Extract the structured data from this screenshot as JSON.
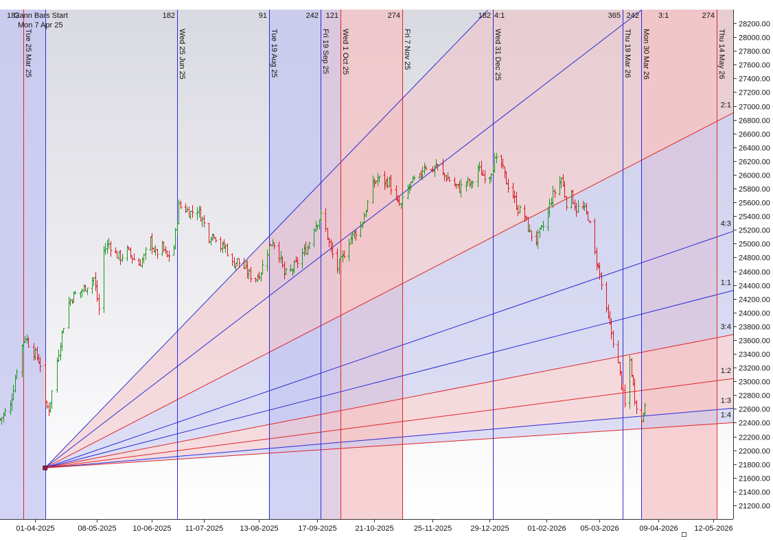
{
  "header": {
    "start_label": "Gann Bars Start",
    "start_date": "Mon 7 Apr 25"
  },
  "chart_data": {
    "type": "ohlc",
    "title": "",
    "xlabel": "",
    "ylabel": "",
    "ylim": [
      21000,
      28400
    ],
    "grid": false,
    "y_tick_labels": [
      "21200.00",
      "21400.00",
      "21600.00",
      "21800.00",
      "22000.00",
      "22200.00",
      "22400.00",
      "22600.00",
      "22800.00",
      "23000.00",
      "23200.00",
      "23400.00",
      "23600.00",
      "23800.00",
      "24000.00",
      "24200.00",
      "24400.00",
      "24600.00",
      "24800.00",
      "25000.00",
      "25200.00",
      "25400.00",
      "25600.00",
      "25800.00",
      "26000.00",
      "26200.00",
      "26400.00",
      "26600.00",
      "26800.00",
      "27000.00",
      "27200.00",
      "27400.00",
      "27600.00",
      "27800.00",
      "28000.00",
      "28200.00"
    ],
    "x_tick_labels": [
      "01-04-2025",
      "08-05-2025",
      "10-06-2025",
      "11-07-2025",
      "13-08-2025",
      "17-09-2025",
      "21-10-2025",
      "25-11-2025",
      "29-12-2025",
      "01-02-2026",
      "05-03-2026",
      "09-04-2026",
      "12-05-2026"
    ],
    "x_tick_dates": [
      "2025-04-01",
      "2025-05-08",
      "2025-06-10",
      "2025-07-11",
      "2025-08-13",
      "2025-09-17",
      "2025-10-21",
      "2025-11-25",
      "2025-12-29",
      "2026-02-01",
      "2026-03-05",
      "2026-04-09",
      "2026-05-12"
    ],
    "x_range": [
      "2025-03-11",
      "2026-05-24"
    ],
    "gann_origin": {
      "date": "2025-04-07",
      "price": 21743
    },
    "gann_fan": [
      {
        "label": "",
        "end_date": "2025-12-28",
        "end_price": 28390,
        "color": "#2b2bd6"
      },
      {
        "label": "",
        "end_date": "2026-03-30",
        "end_price": 28390,
        "color": "#2b2bd6"
      },
      {
        "label": "2:1",
        "end_date": "2026-05-24",
        "end_price": 26900,
        "color": "#e02424"
      },
      {
        "label": "4:3",
        "end_date": "2026-05-24",
        "end_price": 25180,
        "color": "#2b2bd6"
      },
      {
        "label": "1:1",
        "end_date": "2026-05-24",
        "end_price": 24320,
        "color": "#2b2bd6"
      },
      {
        "label": "3:4",
        "end_date": "2026-05-24",
        "end_price": 23680,
        "color": "#e02424"
      },
      {
        "label": "1:2",
        "end_date": "2026-05-24",
        "end_price": 23040,
        "color": "#e02424"
      },
      {
        "label": "1:3",
        "end_date": "2026-05-24",
        "end_price": 22610,
        "color": "#2b2bd6"
      },
      {
        "label": "1:4",
        "end_date": "2026-05-24",
        "end_price": 22400,
        "color": "#e02424"
      }
    ],
    "shade_colors": {
      "blue": "#c4c6f0",
      "red": "#f3c3c6"
    },
    "time_lines": [
      {
        "date": "2025-03-25",
        "label": "Tue 25 Mar 25",
        "count": "",
        "color": "#e02424"
      },
      {
        "date": "2025-04-07",
        "label": "",
        "count": "",
        "color": "#2b2bd6"
      },
      {
        "date": "2025-06-25",
        "label": "Wed 25 Jun 25",
        "count": "182",
        "color": "#2b2bd6"
      },
      {
        "date": "2025-08-19",
        "label": "Tue 19 Aug 25",
        "count": "91",
        "color": "#2b2bd6"
      },
      {
        "date": "2025-09-19",
        "label": "Fri 19 Sep 25",
        "count": "242",
        "color": "#2b2bd6"
      },
      {
        "date": "2025-10-01",
        "label": "Wed 1 Oct 25",
        "count": "121",
        "color": "#e02424"
      },
      {
        "date": "2025-11-07",
        "label": "Fri 7 Nov 25",
        "count": "274",
        "color": "#e02424"
      },
      {
        "date": "2025-12-31",
        "label": "Wed 31 Dec 25",
        "count": "182",
        "color": "#2b2bd6"
      },
      {
        "date": "2026-03-19",
        "label": "Thu 19 Mar 26",
        "count": "365",
        "color": "#2b2bd6"
      },
      {
        "date": "2026-03-30",
        "label": "Mon 30 Mar 26",
        "count": "242",
        "color": "#2b2bd6"
      },
      {
        "date": "2026-05-14",
        "label": "Thu 14 May 26",
        "count": "274",
        "color": "#e02424"
      }
    ],
    "top_counts": [
      {
        "date": "2025-03-15",
        "text": "182"
      },
      {
        "date": "2026-01-01",
        "text": "4:1"
      },
      {
        "date": "2026-04-09",
        "text": "3:1"
      }
    ],
    "time_bands": [
      {
        "from": "2025-03-11",
        "to": "2025-04-07",
        "color": "blue"
      },
      {
        "from": "2025-08-19",
        "to": "2025-09-19",
        "color": "blue"
      },
      {
        "from": "2025-09-19",
        "to": "2025-10-01",
        "color": "mix"
      },
      {
        "from": "2025-10-01",
        "to": "2025-11-07",
        "color": "red"
      },
      {
        "from": "2026-03-30",
        "to": "2026-05-14",
        "color": "red"
      }
    ],
    "series_points": [
      [
        "2025-03-11",
        22450
      ],
      [
        "2025-03-14",
        22550
      ],
      [
        "2025-03-17",
        22650
      ],
      [
        "2025-03-20",
        23050
      ],
      [
        "2025-03-23",
        23450
      ],
      [
        "2025-03-26",
        23650
      ],
      [
        "2025-03-29",
        23500
      ],
      [
        "2025-04-02",
        23350
      ],
      [
        "2025-04-04",
        23250
      ],
      [
        "2025-04-07",
        22650
      ],
      [
        "2025-04-09",
        22600
      ],
      [
        "2025-04-11",
        22850
      ],
      [
        "2025-04-14",
        23300
      ],
      [
        "2025-04-17",
        23700
      ],
      [
        "2025-04-21",
        24150
      ],
      [
        "2025-04-24",
        24250
      ],
      [
        "2025-04-28",
        24300
      ],
      [
        "2025-05-02",
        24400
      ],
      [
        "2025-05-06",
        24500
      ],
      [
        "2025-05-09",
        24050
      ],
      [
        "2025-05-12",
        24900
      ],
      [
        "2025-05-15",
        25000
      ],
      [
        "2025-05-19",
        24850
      ],
      [
        "2025-05-22",
        24800
      ],
      [
        "2025-05-26",
        24900
      ],
      [
        "2025-05-29",
        24800
      ],
      [
        "2025-06-02",
        24700
      ],
      [
        "2025-06-05",
        24800
      ],
      [
        "2025-06-09",
        25050
      ],
      [
        "2025-06-12",
        24850
      ],
      [
        "2025-06-16",
        24950
      ],
      [
        "2025-06-19",
        24800
      ],
      [
        "2025-06-23",
        24950
      ],
      [
        "2025-06-26",
        25550
      ],
      [
        "2025-06-30",
        25500
      ],
      [
        "2025-07-03",
        25450
      ],
      [
        "2025-07-07",
        25500
      ],
      [
        "2025-07-10",
        25350
      ],
      [
        "2025-07-14",
        25100
      ],
      [
        "2025-07-17",
        25150
      ],
      [
        "2025-07-21",
        24950
      ],
      [
        "2025-07-24",
        24950
      ],
      [
        "2025-07-28",
        24700
      ],
      [
        "2025-07-31",
        24750
      ],
      [
        "2025-08-04",
        24650
      ],
      [
        "2025-08-07",
        24550
      ],
      [
        "2025-08-11",
        24500
      ],
      [
        "2025-08-14",
        24600
      ],
      [
        "2025-08-18",
        24900
      ],
      [
        "2025-08-21",
        25050
      ],
      [
        "2025-08-25",
        24850
      ],
      [
        "2025-08-28",
        24550
      ],
      [
        "2025-09-01",
        24600
      ],
      [
        "2025-09-04",
        24700
      ],
      [
        "2025-09-08",
        24850
      ],
      [
        "2025-09-11",
        24950
      ],
      [
        "2025-09-15",
        25250
      ],
      [
        "2025-09-19",
        25400
      ],
      [
        "2025-09-22",
        25200
      ],
      [
        "2025-09-25",
        24900
      ],
      [
        "2025-09-29",
        24650
      ],
      [
        "2025-10-02",
        24800
      ],
      [
        "2025-10-06",
        25050
      ],
      [
        "2025-10-09",
        25150
      ],
      [
        "2025-10-13",
        25250
      ],
      [
        "2025-10-16",
        25500
      ],
      [
        "2025-10-20",
        25850
      ],
      [
        "2025-10-23",
        25950
      ],
      [
        "2025-10-27",
        25900
      ],
      [
        "2025-10-30",
        25900
      ],
      [
        "2025-11-03",
        25600
      ],
      [
        "2025-11-06",
        25550
      ],
      [
        "2025-11-10",
        25800
      ],
      [
        "2025-11-13",
        25900
      ],
      [
        "2025-11-17",
        25950
      ],
      [
        "2025-11-20",
        26150
      ],
      [
        "2025-11-24",
        26050
      ],
      [
        "2025-11-27",
        26150
      ],
      [
        "2025-12-01",
        26000
      ],
      [
        "2025-12-04",
        25950
      ],
      [
        "2025-12-08",
        25850
      ],
      [
        "2025-12-11",
        25800
      ],
      [
        "2025-12-15",
        25900
      ],
      [
        "2025-12-18",
        25850
      ],
      [
        "2025-12-22",
        26100
      ],
      [
        "2025-12-25",
        26000
      ],
      [
        "2025-12-29",
        26000
      ],
      [
        "2026-01-01",
        26200
      ],
      [
        "2026-01-05",
        26150
      ],
      [
        "2026-01-08",
        25900
      ],
      [
        "2026-01-12",
        25700
      ],
      [
        "2026-01-15",
        25500
      ],
      [
        "2026-01-19",
        25400
      ],
      [
        "2026-01-22",
        25150
      ],
      [
        "2026-01-26",
        25050
      ],
      [
        "2026-01-29",
        25200
      ],
      [
        "2026-02-01",
        25350
      ],
      [
        "2026-02-04",
        25650
      ],
      [
        "2026-02-07",
        25800
      ],
      [
        "2026-02-10",
        25950
      ],
      [
        "2026-02-13",
        25600
      ],
      [
        "2026-02-16",
        25700
      ],
      [
        "2026-02-19",
        25500
      ],
      [
        "2026-02-22",
        25550
      ],
      [
        "2026-02-26",
        25400
      ],
      [
        "2026-03-02",
        24850
      ],
      [
        "2026-03-05",
        24550
      ],
      [
        "2026-03-08",
        24100
      ],
      [
        "2026-03-11",
        23800
      ],
      [
        "2026-03-14",
        23500
      ],
      [
        "2026-03-17",
        23100
      ],
      [
        "2026-03-20",
        22650
      ],
      [
        "2026-03-23",
        23300
      ],
      [
        "2026-03-26",
        22750
      ],
      [
        "2026-03-30",
        22400
      ],
      [
        "2026-04-01",
        22700
      ]
    ]
  }
}
